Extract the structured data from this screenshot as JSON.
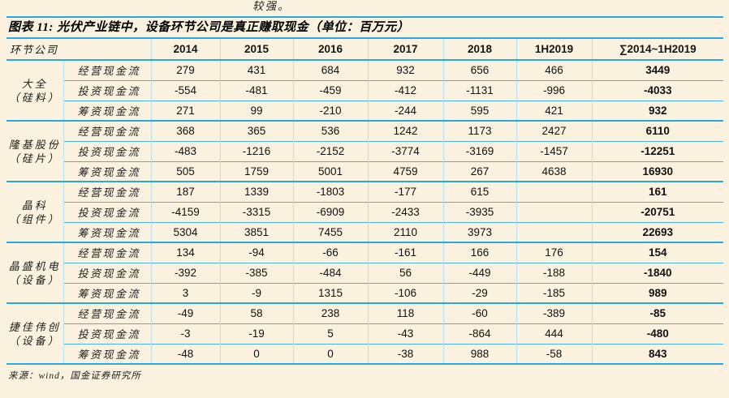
{
  "page": {
    "fragment_text": "较强。",
    "figure_title": "图表 11: 光伏产业链中，设备环节公司是真正赚取现金（单位：百万元）",
    "source": "来源：wind，国金证券研究所"
  },
  "colors": {
    "page_bg": "#faf2df",
    "accent_blue": "#2aa7dc",
    "thin_blue": "#4ab2e2",
    "divider_blue": "#b7dff1",
    "text": "#151515"
  },
  "table": {
    "header": [
      "环节公司",
      "2014",
      "2015",
      "2016",
      "2017",
      "2018",
      "1H2019",
      "∑2014~1H2019"
    ],
    "row_labels": [
      "经营现金流",
      "投资现金流",
      "筹资现金流"
    ],
    "groups": [
      {
        "company": "大全",
        "segment": "（硅料）",
        "rows": [
          [
            "279",
            "431",
            "684",
            "932",
            "656",
            "466",
            "3449"
          ],
          [
            "-554",
            "-481",
            "-459",
            "-412",
            "-1131",
            "-996",
            "-4033"
          ],
          [
            "271",
            "99",
            "-210",
            "-244",
            "595",
            "421",
            "932"
          ]
        ]
      },
      {
        "company": "隆基股份",
        "segment": "（硅片）",
        "rows": [
          [
            "368",
            "365",
            "536",
            "1242",
            "1173",
            "2427",
            "6110"
          ],
          [
            "-483",
            "-1216",
            "-2152",
            "-3774",
            "-3169",
            "-1457",
            "-12251"
          ],
          [
            "505",
            "1759",
            "5001",
            "4759",
            "267",
            "4638",
            "16930"
          ]
        ]
      },
      {
        "company": "晶科",
        "segment": "（组件）",
        "rows": [
          [
            "187",
            "1339",
            "-1803",
            "-177",
            "615",
            "",
            "161"
          ],
          [
            "-4159",
            "-3315",
            "-6909",
            "-2433",
            "-3935",
            "",
            "-20751"
          ],
          [
            "5304",
            "3851",
            "7455",
            "2110",
            "3973",
            "",
            "22693"
          ]
        ]
      },
      {
        "company": "晶盛机电",
        "segment": "（设备）",
        "rows": [
          [
            "134",
            "-94",
            "-66",
            "-161",
            "166",
            "176",
            "154"
          ],
          [
            "-392",
            "-385",
            "-484",
            "56",
            "-449",
            "-188",
            "-1840"
          ],
          [
            "3",
            "-9",
            "1315",
            "-106",
            "-29",
            "-185",
            "989"
          ]
        ]
      },
      {
        "company": "捷佳伟创",
        "segment": "（设备）",
        "rows": [
          [
            "-49",
            "58",
            "238",
            "118",
            "-60",
            "-389",
            "-85"
          ],
          [
            "-3",
            "-19",
            "5",
            "-43",
            "-864",
            "444",
            "-480"
          ],
          [
            "-48",
            "0",
            "0",
            "-38",
            "988",
            "-58",
            "843"
          ]
        ]
      }
    ]
  }
}
